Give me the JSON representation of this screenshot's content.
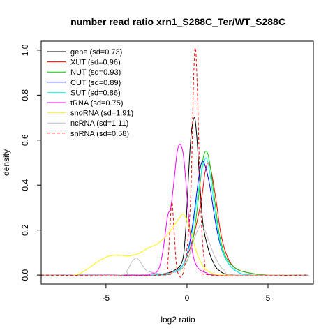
{
  "chart_data": {
    "type": "line",
    "title": "number read ratio xrn1_S288C_Ter/WT_S288C",
    "xlabel": "log2 ratio",
    "ylabel": "density",
    "xlim": [
      -9,
      7.8
    ],
    "ylim": [
      -0.04,
      1.04
    ],
    "x_ticks": [
      -5,
      0,
      5
    ],
    "y_ticks": [
      0.0,
      0.2,
      0.4,
      0.6,
      0.8,
      1.0
    ],
    "x_tick_labels": [
      "-5",
      "0",
      "5"
    ],
    "y_tick_labels": [
      "0.0",
      "0.2",
      "0.4",
      "0.6",
      "0.8",
      "1.0"
    ],
    "grid": false,
    "legend_position": "top-left",
    "series": [
      {
        "name": "gene (sd=0.73)",
        "color": "#000000",
        "dash": "solid",
        "points": [
          [
            -9,
            0
          ],
          [
            -2.5,
            0
          ],
          [
            -1.5,
            0.005
          ],
          [
            -0.8,
            0.02
          ],
          [
            -0.3,
            0.06
          ],
          [
            -0.1,
            0.18
          ],
          [
            0.1,
            0.45
          ],
          [
            0.25,
            0.62
          ],
          [
            0.45,
            0.7
          ],
          [
            0.6,
            0.62
          ],
          [
            0.8,
            0.4
          ],
          [
            1.0,
            0.22
          ],
          [
            1.3,
            0.12
          ],
          [
            1.6,
            0.06
          ],
          [
            2.0,
            0.02
          ],
          [
            3.0,
            0
          ],
          [
            7.5,
            0
          ]
        ]
      },
      {
        "name": "XUT (sd=0.96)",
        "color": "#ff0000",
        "dash": "solid",
        "points": [
          [
            -9,
            0
          ],
          [
            -2,
            0
          ],
          [
            -1,
            0.01
          ],
          [
            -0.3,
            0.04
          ],
          [
            0.2,
            0.12
          ],
          [
            0.5,
            0.2
          ],
          [
            0.9,
            0.34
          ],
          [
            1.1,
            0.45
          ],
          [
            1.3,
            0.5
          ],
          [
            1.5,
            0.46
          ],
          [
            1.8,
            0.33
          ],
          [
            2.1,
            0.18
          ],
          [
            2.5,
            0.08
          ],
          [
            3.0,
            0.03
          ],
          [
            3.8,
            0.01
          ],
          [
            5,
            0
          ],
          [
            7.5,
            0
          ]
        ]
      },
      {
        "name": "NUT (sd=0.93)",
        "color": "#00cc00",
        "dash": "solid",
        "points": [
          [
            -9,
            0
          ],
          [
            -2,
            0
          ],
          [
            -1,
            0.01
          ],
          [
            -0.3,
            0.03
          ],
          [
            0.2,
            0.1
          ],
          [
            0.5,
            0.22
          ],
          [
            0.8,
            0.4
          ],
          [
            1.0,
            0.52
          ],
          [
            1.2,
            0.55
          ],
          [
            1.4,
            0.5
          ],
          [
            1.7,
            0.34
          ],
          [
            2.0,
            0.18
          ],
          [
            2.4,
            0.08
          ],
          [
            3.0,
            0.03
          ],
          [
            3.8,
            0.01
          ],
          [
            5,
            0
          ],
          [
            7.5,
            0
          ]
        ]
      },
      {
        "name": "CUT (sd=0.89)",
        "color": "#0000ff",
        "dash": "solid",
        "points": [
          [
            -9,
            0
          ],
          [
            -2,
            0
          ],
          [
            -1,
            0.01
          ],
          [
            -0.3,
            0.04
          ],
          [
            0.1,
            0.12
          ],
          [
            0.4,
            0.25
          ],
          [
            0.7,
            0.42
          ],
          [
            0.9,
            0.5
          ],
          [
            1.1,
            0.49
          ],
          [
            1.4,
            0.4
          ],
          [
            1.7,
            0.26
          ],
          [
            2.0,
            0.15
          ],
          [
            2.4,
            0.07
          ],
          [
            3.0,
            0.02
          ],
          [
            4,
            0
          ],
          [
            7.5,
            0
          ]
        ]
      },
      {
        "name": "SUT (sd=0.86)",
        "color": "#00ffff",
        "dash": "solid",
        "points": [
          [
            -9,
            0
          ],
          [
            -2,
            0
          ],
          [
            -1,
            0.01
          ],
          [
            -0.3,
            0.04
          ],
          [
            0.2,
            0.14
          ],
          [
            0.5,
            0.28
          ],
          [
            0.8,
            0.42
          ],
          [
            1.0,
            0.49
          ],
          [
            1.2,
            0.52
          ],
          [
            1.4,
            0.46
          ],
          [
            1.7,
            0.3
          ],
          [
            2.0,
            0.16
          ],
          [
            2.4,
            0.07
          ],
          [
            3.0,
            0.02
          ],
          [
            4,
            0
          ],
          [
            7.5,
            0
          ]
        ]
      },
      {
        "name": "tRNA (sd=0.75)",
        "color": "#ff00ff",
        "dash": "solid",
        "points": [
          [
            -9,
            0
          ],
          [
            -3,
            0
          ],
          [
            -2.3,
            0.005
          ],
          [
            -1.8,
            0.02
          ],
          [
            -1.5,
            0.1
          ],
          [
            -1.2,
            0.26
          ],
          [
            -1.0,
            0.3
          ],
          [
            -0.8,
            0.42
          ],
          [
            -0.6,
            0.55
          ],
          [
            -0.4,
            0.58
          ],
          [
            -0.2,
            0.52
          ],
          [
            0.0,
            0.35
          ],
          [
            0.2,
            0.18
          ],
          [
            0.4,
            0.08
          ],
          [
            0.7,
            0.03
          ],
          [
            1.2,
            0.01
          ],
          [
            2,
            0
          ],
          [
            7.5,
            0
          ]
        ]
      },
      {
        "name": "snoRNA (sd=1.91)",
        "color": "#ffff00",
        "dash": "solid",
        "points": [
          [
            -9,
            0
          ],
          [
            -7,
            0
          ],
          [
            -6.3,
            0.02
          ],
          [
            -5.5,
            0.06
          ],
          [
            -4.8,
            0.085
          ],
          [
            -4.2,
            0.088
          ],
          [
            -3.6,
            0.085
          ],
          [
            -3.0,
            0.095
          ],
          [
            -2.4,
            0.12
          ],
          [
            -1.8,
            0.14
          ],
          [
            -1.2,
            0.18
          ],
          [
            -0.6,
            0.24
          ],
          [
            -0.2,
            0.27
          ],
          [
            0.2,
            0.2
          ],
          [
            0.6,
            0.1
          ],
          [
            1.0,
            0.04
          ],
          [
            1.5,
            0.01
          ],
          [
            2.5,
            0
          ],
          [
            7.5,
            0
          ]
        ]
      },
      {
        "name": "ncRNA (sd=1.11)",
        "color": "#bebebe",
        "dash": "solid",
        "points": [
          [
            -9,
            0
          ],
          [
            -4.2,
            0
          ],
          [
            -3.7,
            0.02
          ],
          [
            -3.4,
            0.06
          ],
          [
            -3.1,
            0.075
          ],
          [
            -2.8,
            0.05
          ],
          [
            -2.5,
            0.02
          ],
          [
            -2.0,
            0.01
          ],
          [
            -1.5,
            0.005
          ],
          [
            -1.0,
            0.01
          ],
          [
            -0.5,
            0.02
          ],
          [
            0.0,
            0.06
          ],
          [
            0.4,
            0.15
          ],
          [
            0.8,
            0.22
          ],
          [
            1.1,
            0.2
          ],
          [
            1.4,
            0.14
          ],
          [
            1.8,
            0.07
          ],
          [
            2.3,
            0.02
          ],
          [
            3,
            0
          ],
          [
            7.5,
            0
          ]
        ]
      },
      {
        "name": "snRNA (sd=0.58)",
        "color": "#ff0000",
        "dash": "dashed",
        "points": [
          [
            -9,
            0
          ],
          [
            -1.6,
            0
          ],
          [
            -1.2,
            0.05
          ],
          [
            -0.95,
            0.32
          ],
          [
            -0.8,
            0.2
          ],
          [
            -0.6,
            0.02
          ],
          [
            -0.2,
            0.02
          ],
          [
            0.2,
            0.3
          ],
          [
            0.4,
            0.85
          ],
          [
            0.52,
            1.01
          ],
          [
            0.65,
            0.8
          ],
          [
            0.85,
            0.3
          ],
          [
            1.1,
            0.05
          ],
          [
            1.5,
            0
          ],
          [
            7.5,
            0
          ]
        ]
      }
    ]
  }
}
